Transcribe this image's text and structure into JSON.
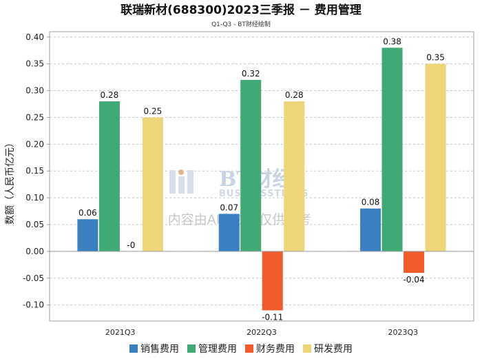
{
  "chart_data": {
    "type": "bar",
    "title": "联瑞新材(688300)2023三季报 － 费用管理",
    "subtitle": "Q1-Q3 - BT财经绘制",
    "xlabel": "",
    "ylabel": "数额（人民币亿元）",
    "ylim": [
      -0.13,
      0.41
    ],
    "yticks": [
      0.4,
      0.35,
      0.3,
      0.25,
      0.2,
      0.15,
      0.1,
      0.05,
      0.0,
      -0.05,
      -0.1
    ],
    "ytick_labels": [
      "0.40",
      "0.35",
      "0.30",
      "0.25",
      "0.20",
      "0.15",
      "0.10",
      "0.05",
      "0.00",
      "-0.05",
      "-0.10"
    ],
    "grid": true,
    "legend_position": "bottom",
    "categories": [
      "2021Q3",
      "2022Q3",
      "2023Q3"
    ],
    "series": [
      {
        "name": "销售费用",
        "color": "#3a7fc0",
        "values": [
          0.06,
          0.07,
          0.08
        ],
        "labels": [
          "0.06",
          "0.07",
          "0.08"
        ]
      },
      {
        "name": "管理费用",
        "color": "#41a975",
        "values": [
          0.28,
          0.32,
          0.38
        ],
        "labels": [
          "0.28",
          "0.32",
          "0.38"
        ]
      },
      {
        "name": "财务费用",
        "color": "#ee5a2a",
        "values": [
          0.0,
          -0.11,
          -0.04
        ],
        "labels": [
          "-0",
          "-0.11",
          "-0.04"
        ]
      },
      {
        "name": "研发费用",
        "color": "#ecd679",
        "values": [
          0.25,
          0.28,
          0.35
        ],
        "labels": [
          "0.25",
          "0.28",
          "0.35"
        ]
      }
    ]
  },
  "watermark": {
    "brand_cn": "BT财经",
    "brand_en": "BUSINESSTIMES",
    "note": "内容由AI生成，仅供参考"
  }
}
